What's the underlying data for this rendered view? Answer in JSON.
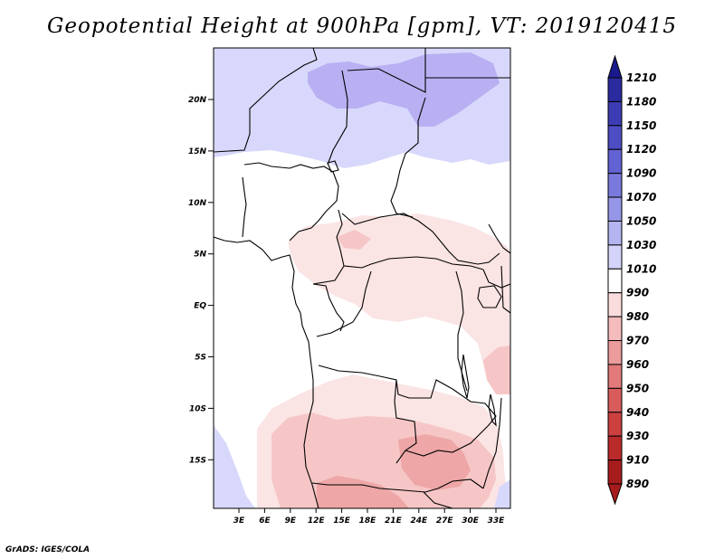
{
  "title": "Geopotential Height at 900hPa [gpm], VT: 2019120415",
  "credit": "GrADS: IGES/COLA",
  "map": {
    "lat_labels": [
      "20N",
      "15N",
      "10N",
      "5N",
      "EQ",
      "5S",
      "10S",
      "15S"
    ],
    "lon_labels": [
      "3E",
      "6E",
      "9E",
      "12E",
      "15E",
      "18E",
      "21E",
      "24E",
      "27E",
      "30E",
      "33E"
    ]
  },
  "colorbar": {
    "levels": [
      "1210",
      "1180",
      "1150",
      "1120",
      "1090",
      "1070",
      "1050",
      "1030",
      "1010",
      "990",
      "980",
      "970",
      "960",
      "950",
      "940",
      "930",
      "910",
      "890"
    ],
    "colors": [
      "#1a1a8c",
      "#2b2ba0",
      "#3c3cb4",
      "#4d4dc4",
      "#6262d2",
      "#7a7ade",
      "#9696e8",
      "#b4b4f0",
      "#d4d4fa",
      "#ffffff",
      "#fadcdc",
      "#f4bcbc",
      "#ec9c9c",
      "#e27a7a",
      "#d85c5c",
      "#cc4040",
      "#bb2a2a",
      "#a61c1c"
    ]
  },
  "field_colors": {
    "blue_light": "#d8d8fc",
    "blue_mid": "#b8b0f2",
    "pink_light": "#fbe4e4",
    "pink_mid": "#f6c6c6",
    "pink_dark": "#eea6a6"
  }
}
